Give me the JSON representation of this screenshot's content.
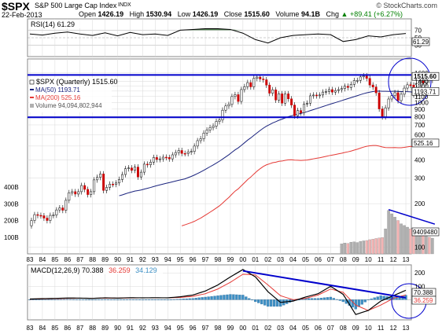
{
  "header": {
    "symbol": "$SPX",
    "name": "S&P 500 Large Cap Index",
    "exchange": "INDX",
    "copyright": "© StockCharts.com",
    "date": "22-Feb-2013",
    "open_label": "Open",
    "open": "1426.19",
    "high_label": "High",
    "high": "1530.94",
    "low_label": "Low",
    "low": "1426.19",
    "close_label": "Close",
    "close": "1515.60",
    "volume_label": "Volume",
    "volume": "94.1B",
    "change_label": "Chg",
    "change": "+89.41 (+6.27%)",
    "change_arrow": "▲",
    "change_color": "#008000"
  },
  "colors": {
    "up_candle": "#ffffff",
    "down_candle": "#cc0000",
    "ma50": "#1a237e",
    "ma200": "#e53935",
    "volume_up": "#b0b0b0",
    "volume_down": "#f4b4b4",
    "macd_line": "#000000",
    "signal_line": "#e53935",
    "histogram": "#3d8fc4",
    "rsi_fill": "#4c7a4c",
    "trendline": "#0000cc",
    "grid": "#d8d8d8"
  },
  "chart_data": [
    {
      "panel": "rsi",
      "type": "line",
      "legend": "RSI(14) 61.29",
      "current": 61.29,
      "ylim": [
        0,
        100
      ],
      "right_ticks": [
        "70",
        "50",
        "30"
      ],
      "x": [
        1983,
        1984,
        1985,
        1986,
        1987,
        1988,
        1989,
        1990,
        1991,
        1992,
        1993,
        1994,
        1995,
        1996,
        1997,
        1998,
        1999,
        2000,
        2001,
        2002,
        2003,
        2004,
        2005,
        2006,
        2007,
        2008,
        2009,
        2010,
        2011,
        2012,
        2013
      ],
      "values": [
        60,
        57,
        62,
        65,
        60,
        56,
        63,
        55,
        64,
        58,
        60,
        56,
        70,
        72,
        74,
        74,
        72,
        62,
        45,
        36,
        50,
        56,
        58,
        60,
        58,
        40,
        45,
        55,
        52,
        58,
        61.29
      ],
      "overbought": 70,
      "oversold": 30
    },
    {
      "panel": "price",
      "type": "candlestick",
      "legend": [
        "$SPX (Quarterly) 1515.60",
        "MA(50) 1193.71",
        "MA(200) 525.16",
        "Volume 94,094,802,944"
      ],
      "scale": "log",
      "ylim": [
        90,
        2000
      ],
      "right_ticks": [
        "1600",
        "1515.60",
        "1400",
        "1300",
        "1193.71",
        "1100",
        "1000",
        "900",
        "800",
        "700",
        "600",
        "525.16",
        "400",
        "300",
        "200",
        "100"
      ],
      "x_ticks": [
        "83",
        "84",
        "85",
        "86",
        "87",
        "88",
        "89",
        "90",
        "91",
        "92",
        "93",
        "94",
        "95",
        "96",
        "97",
        "98",
        "99",
        "00",
        "01",
        "02",
        "03",
        "04",
        "05",
        "06",
        "07",
        "08",
        "09",
        "10",
        "11",
        "12",
        "13"
      ],
      "quarters_per_year": 4,
      "start_year": 1983,
      "closes": [
        153,
        168,
        166,
        165,
        159,
        153,
        166,
        167,
        181,
        187,
        180,
        211,
        238,
        242,
        233,
        242,
        267,
        251,
        231,
        242,
        292,
        304,
        321,
        247,
        259,
        273,
        272,
        278,
        294,
        318,
        349,
        353,
        340,
        358,
        306,
        330,
        375,
        371,
        387,
        417,
        404,
        408,
        419,
        417,
        408,
        435,
        451,
        466,
        445,
        444,
        455,
        459,
        500,
        545,
        562,
        615,
        645,
        671,
        687,
        740,
        757,
        885,
        947,
        970,
        1100,
        1133,
        1017,
        1229,
        1286,
        1373,
        1283,
        1469,
        1499,
        1454,
        1436,
        1320,
        1160,
        1224,
        1040,
        1148,
        990,
        1148,
        1060,
        960,
        810,
        880,
        848,
        975,
        990,
        1112,
        1126,
        1114,
        1127,
        1181,
        1191,
        1228,
        1180,
        1211,
        1228,
        1248,
        1295,
        1270,
        1336,
        1418,
        1421,
        1503,
        1527,
        1468,
        1322,
        1280,
        1166,
        903,
        797,
        919,
        1057,
        1115,
        1169,
        1031,
        1141,
        1258,
        1326,
        1320,
        1131,
        1258,
        1408,
        1362,
        1441,
        1426,
        1515.6
      ],
      "ma50_label_value": 1193.71,
      "ma200_label_value": 525.16,
      "support_level": 790,
      "resistance_level": 1550,
      "volume_left_ticks": [
        "400B",
        "300B",
        "200B",
        "100B"
      ],
      "volume_right_label": "9409480",
      "volume_billions_recent": [
        60,
        65,
        62,
        70,
        72,
        68,
        75,
        78,
        80,
        85,
        88,
        92,
        95,
        98,
        150,
        260,
        240,
        220,
        200,
        180,
        170,
        160,
        150,
        140,
        130,
        120,
        110,
        105,
        100,
        94.1
      ]
    },
    {
      "panel": "macd",
      "type": "line+histogram",
      "legend": [
        "MACD(12,26,9) 70.388",
        "36.259",
        "34.129"
      ],
      "macd": 70.388,
      "signal": 36.259,
      "histogram_last": 34.129,
      "right_ticks": [
        "200",
        "100",
        "0"
      ],
      "ylim": [
        -150,
        260
      ],
      "x": [
        1983,
        1984,
        1985,
        1986,
        1987,
        1988,
        1989,
        1990,
        1991,
        1992,
        1993,
        1994,
        1995,
        1996,
        1997,
        1998,
        1999,
        2000,
        2001,
        2002,
        2003,
        2004,
        2005,
        2006,
        2007,
        2008,
        2009,
        2010,
        2011,
        2012,
        2013
      ],
      "macd_values": [
        5,
        8,
        10,
        13,
        12,
        10,
        14,
        12,
        15,
        14,
        15,
        14,
        22,
        35,
        65,
        110,
        170,
        225,
        170,
        60,
        -20,
        -10,
        20,
        45,
        100,
        40,
        -110,
        -80,
        -10,
        30,
        70.388
      ],
      "signal_values": [
        4,
        6,
        8,
        10,
        11,
        11,
        12,
        12,
        13,
        14,
        14,
        14,
        17,
        25,
        45,
        80,
        130,
        190,
        185,
        110,
        30,
        0,
        10,
        35,
        80,
        55,
        -40,
        -80,
        -40,
        10,
        36.259
      ],
      "trendline_from": [
        2000,
        215
      ],
      "trendline_to": [
        2013,
        15
      ]
    }
  ]
}
